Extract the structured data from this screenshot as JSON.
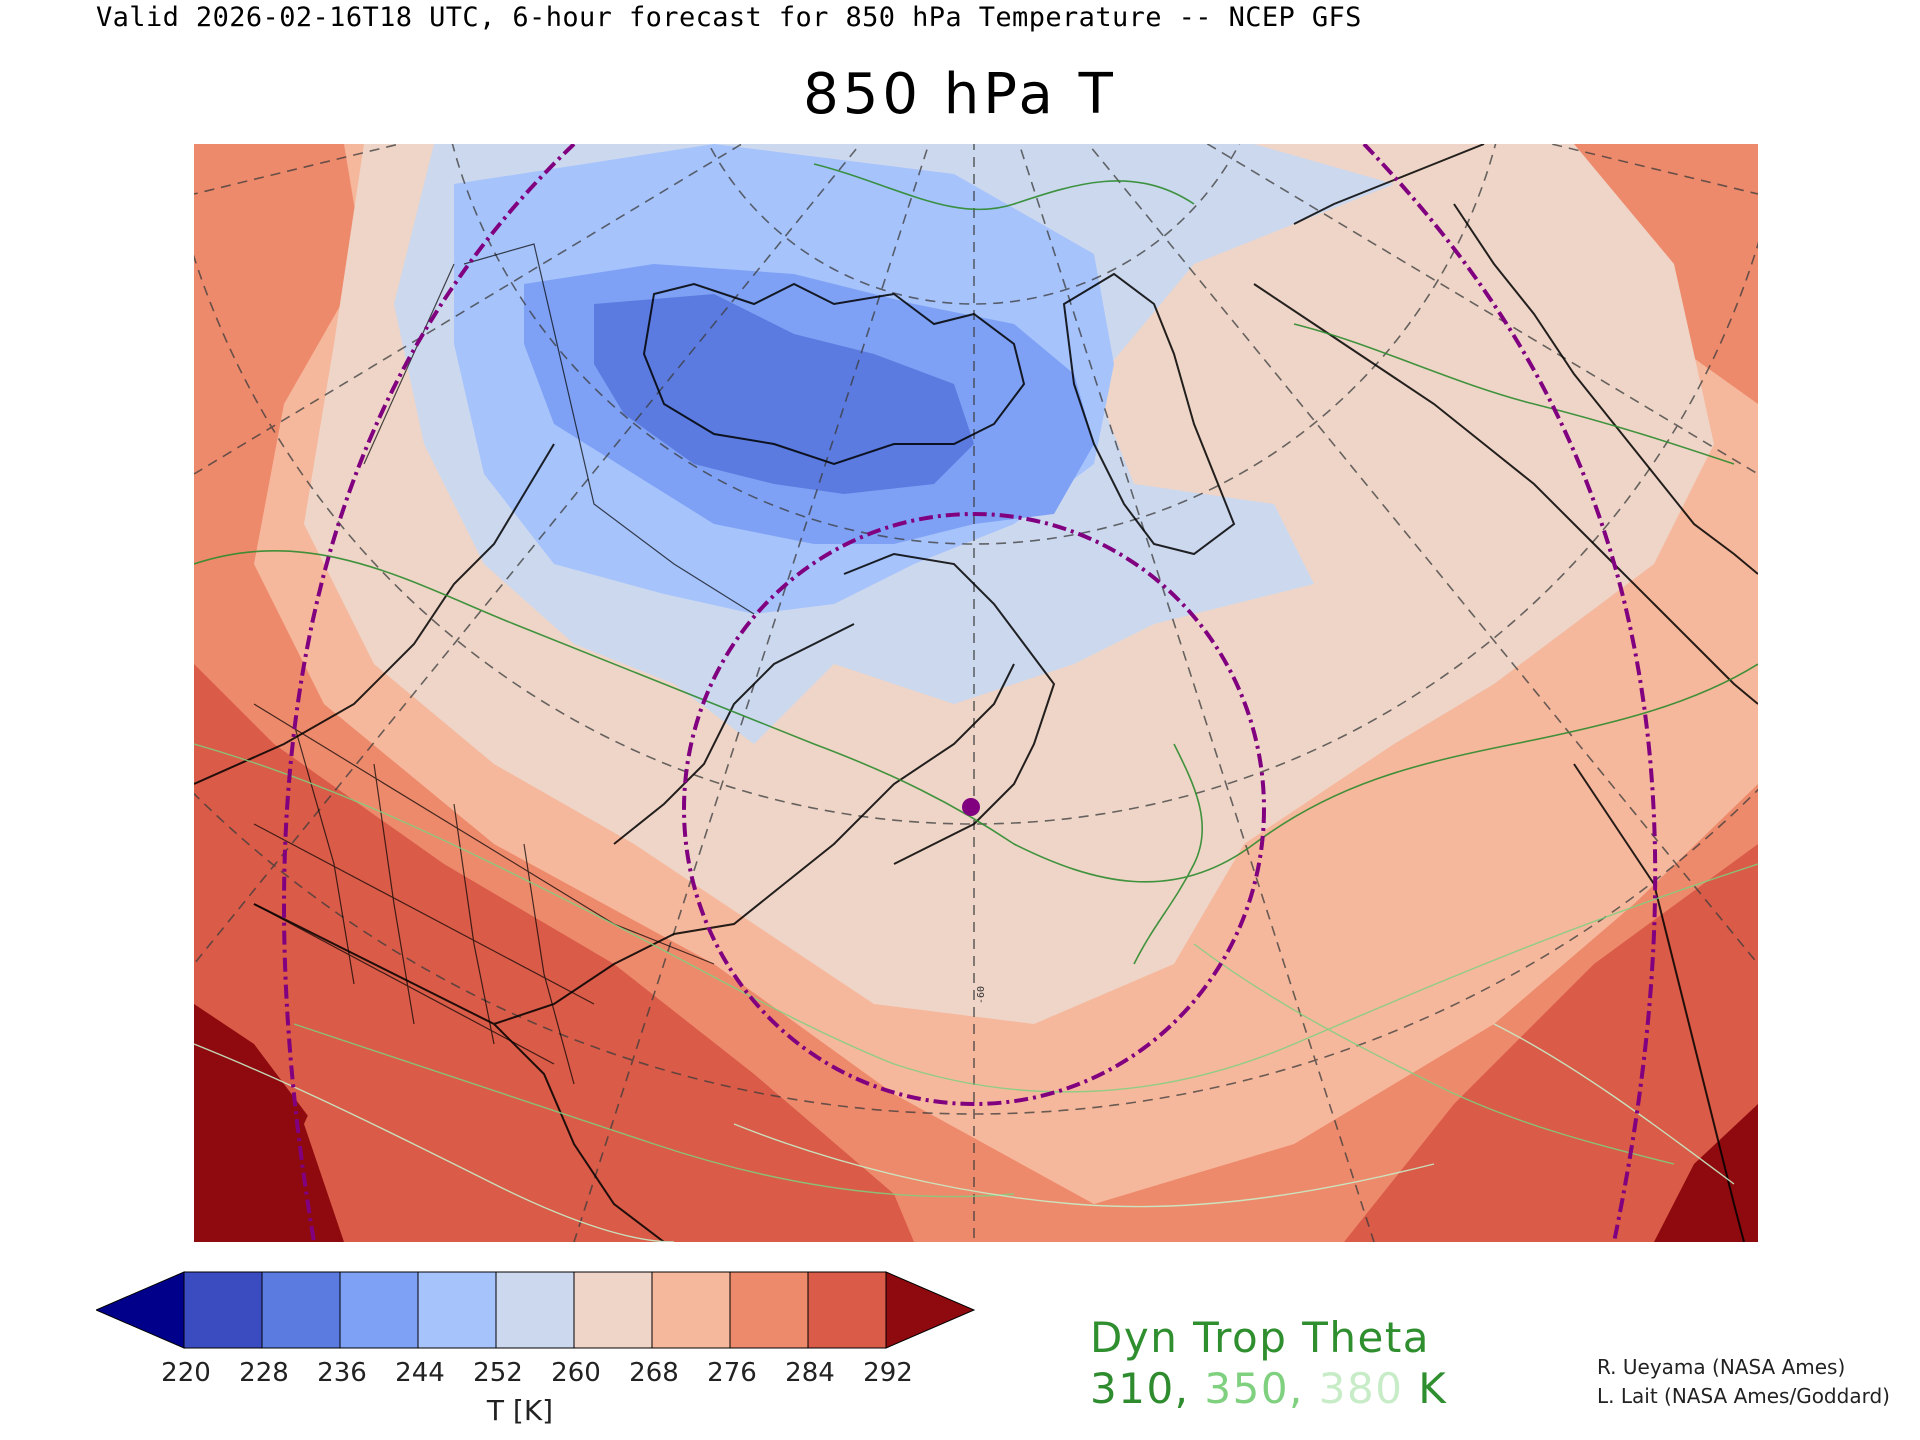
{
  "header": {
    "valid_line": "Valid 2026-02-16T18 UTC, 6-hour forecast for 850 hPa Temperature -- NCEP GFS",
    "title": "850 hPa T"
  },
  "map": {
    "meridian_label": "-60",
    "colors": {
      "t_220_228": "#3a4cc0",
      "t_228_236": "#5b7be0",
      "t_236_244": "#7ea1f5",
      "t_244_252": "#a6c3fc",
      "t_252_260": "#ccd8ee",
      "t_260_268": "#eed5c8",
      "t_268_276": "#f6b89c",
      "t_276_284": "#ee8a6c",
      "t_284_292": "#d95b48",
      "t_above_292": "#8e0a0e",
      "dyn_trop_310": "#2e8b2e",
      "dyn_trop_350": "#7fd07f",
      "dyn_trop_380": "#c8ecc8",
      "great_circle": "#800080",
      "marker": "#800080"
    }
  },
  "colorbar": {
    "ticks": [
      "220",
      "228",
      "236",
      "244",
      "252",
      "260",
      "268",
      "276",
      "284",
      "292"
    ],
    "unit_label": "T [K]",
    "colors": [
      "#00008b",
      "#3a4cc0",
      "#5b7be0",
      "#7ea1f5",
      "#a6c3fc",
      "#ccd8ee",
      "#eed5c8",
      "#f6b89c",
      "#ee8a6c",
      "#d95b48",
      "#8e0a0e"
    ]
  },
  "legend": {
    "title": "Dyn Trop Theta",
    "v310": "310,",
    "v350": "350,",
    "v380": "380",
    "unit": "K"
  },
  "credits": {
    "line1": "R. Ueyama (NASA Ames)",
    "line2": "L. Lait (NASA Ames/Goddard)"
  }
}
